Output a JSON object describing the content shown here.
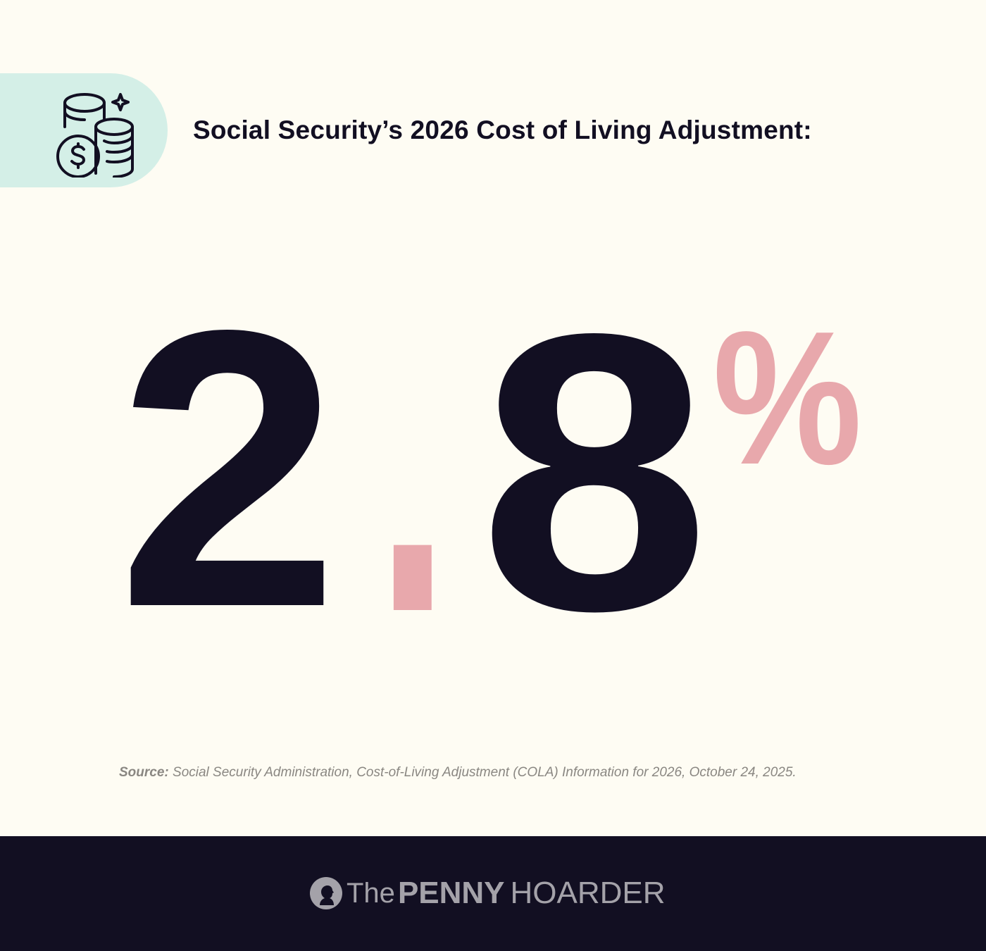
{
  "header": {
    "icon": "coin-stack-dollar-sparkle-icon",
    "title": "Social Security’s 2026 Cost of Living Adjustment:"
  },
  "stat": {
    "value": "2.8%",
    "integer": "2",
    "decimal": ".",
    "fraction": "8",
    "unit": "%",
    "colors": {
      "number": "#120F22",
      "accent": "#E8A8AC",
      "badge": "#D4EFE7"
    }
  },
  "source": {
    "label": "Source:",
    "text": " Social Security Administration, Cost-of-Living Adjustment (COLA) Information for 2026, October 24, 2025."
  },
  "footer": {
    "logo_icon": "penny-portrait-icon",
    "the": "The",
    "penny": "PENNY",
    "hoarder": "HOARDER"
  }
}
